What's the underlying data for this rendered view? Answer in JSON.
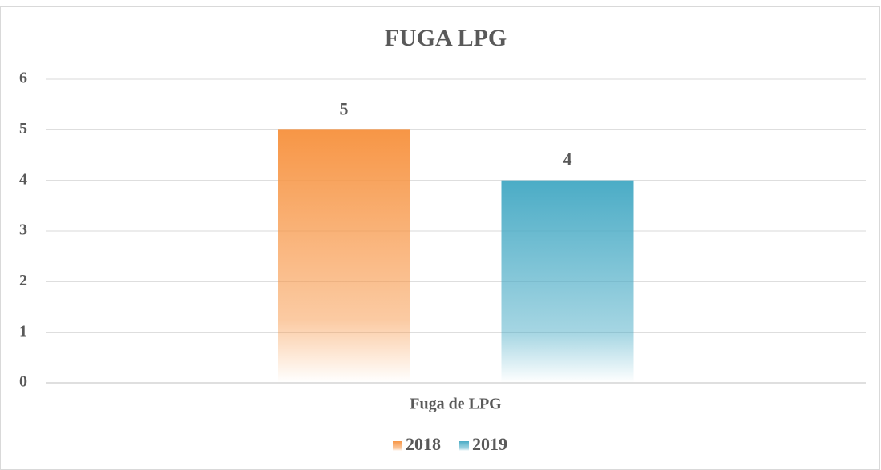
{
  "chart_data": {
    "type": "bar",
    "title": "FUGA LPG",
    "categories": [
      "Fuga de LPG"
    ],
    "series": [
      {
        "name": "2018",
        "color": "#f79646",
        "values": [
          5
        ]
      },
      {
        "name": "2019",
        "color": "#4bacc6",
        "values": [
          4
        ]
      }
    ],
    "ylim": [
      0,
      6
    ],
    "yticks": [
      0,
      1,
      2,
      3,
      4,
      5,
      6
    ],
    "grid": true,
    "legend": "bottom"
  }
}
